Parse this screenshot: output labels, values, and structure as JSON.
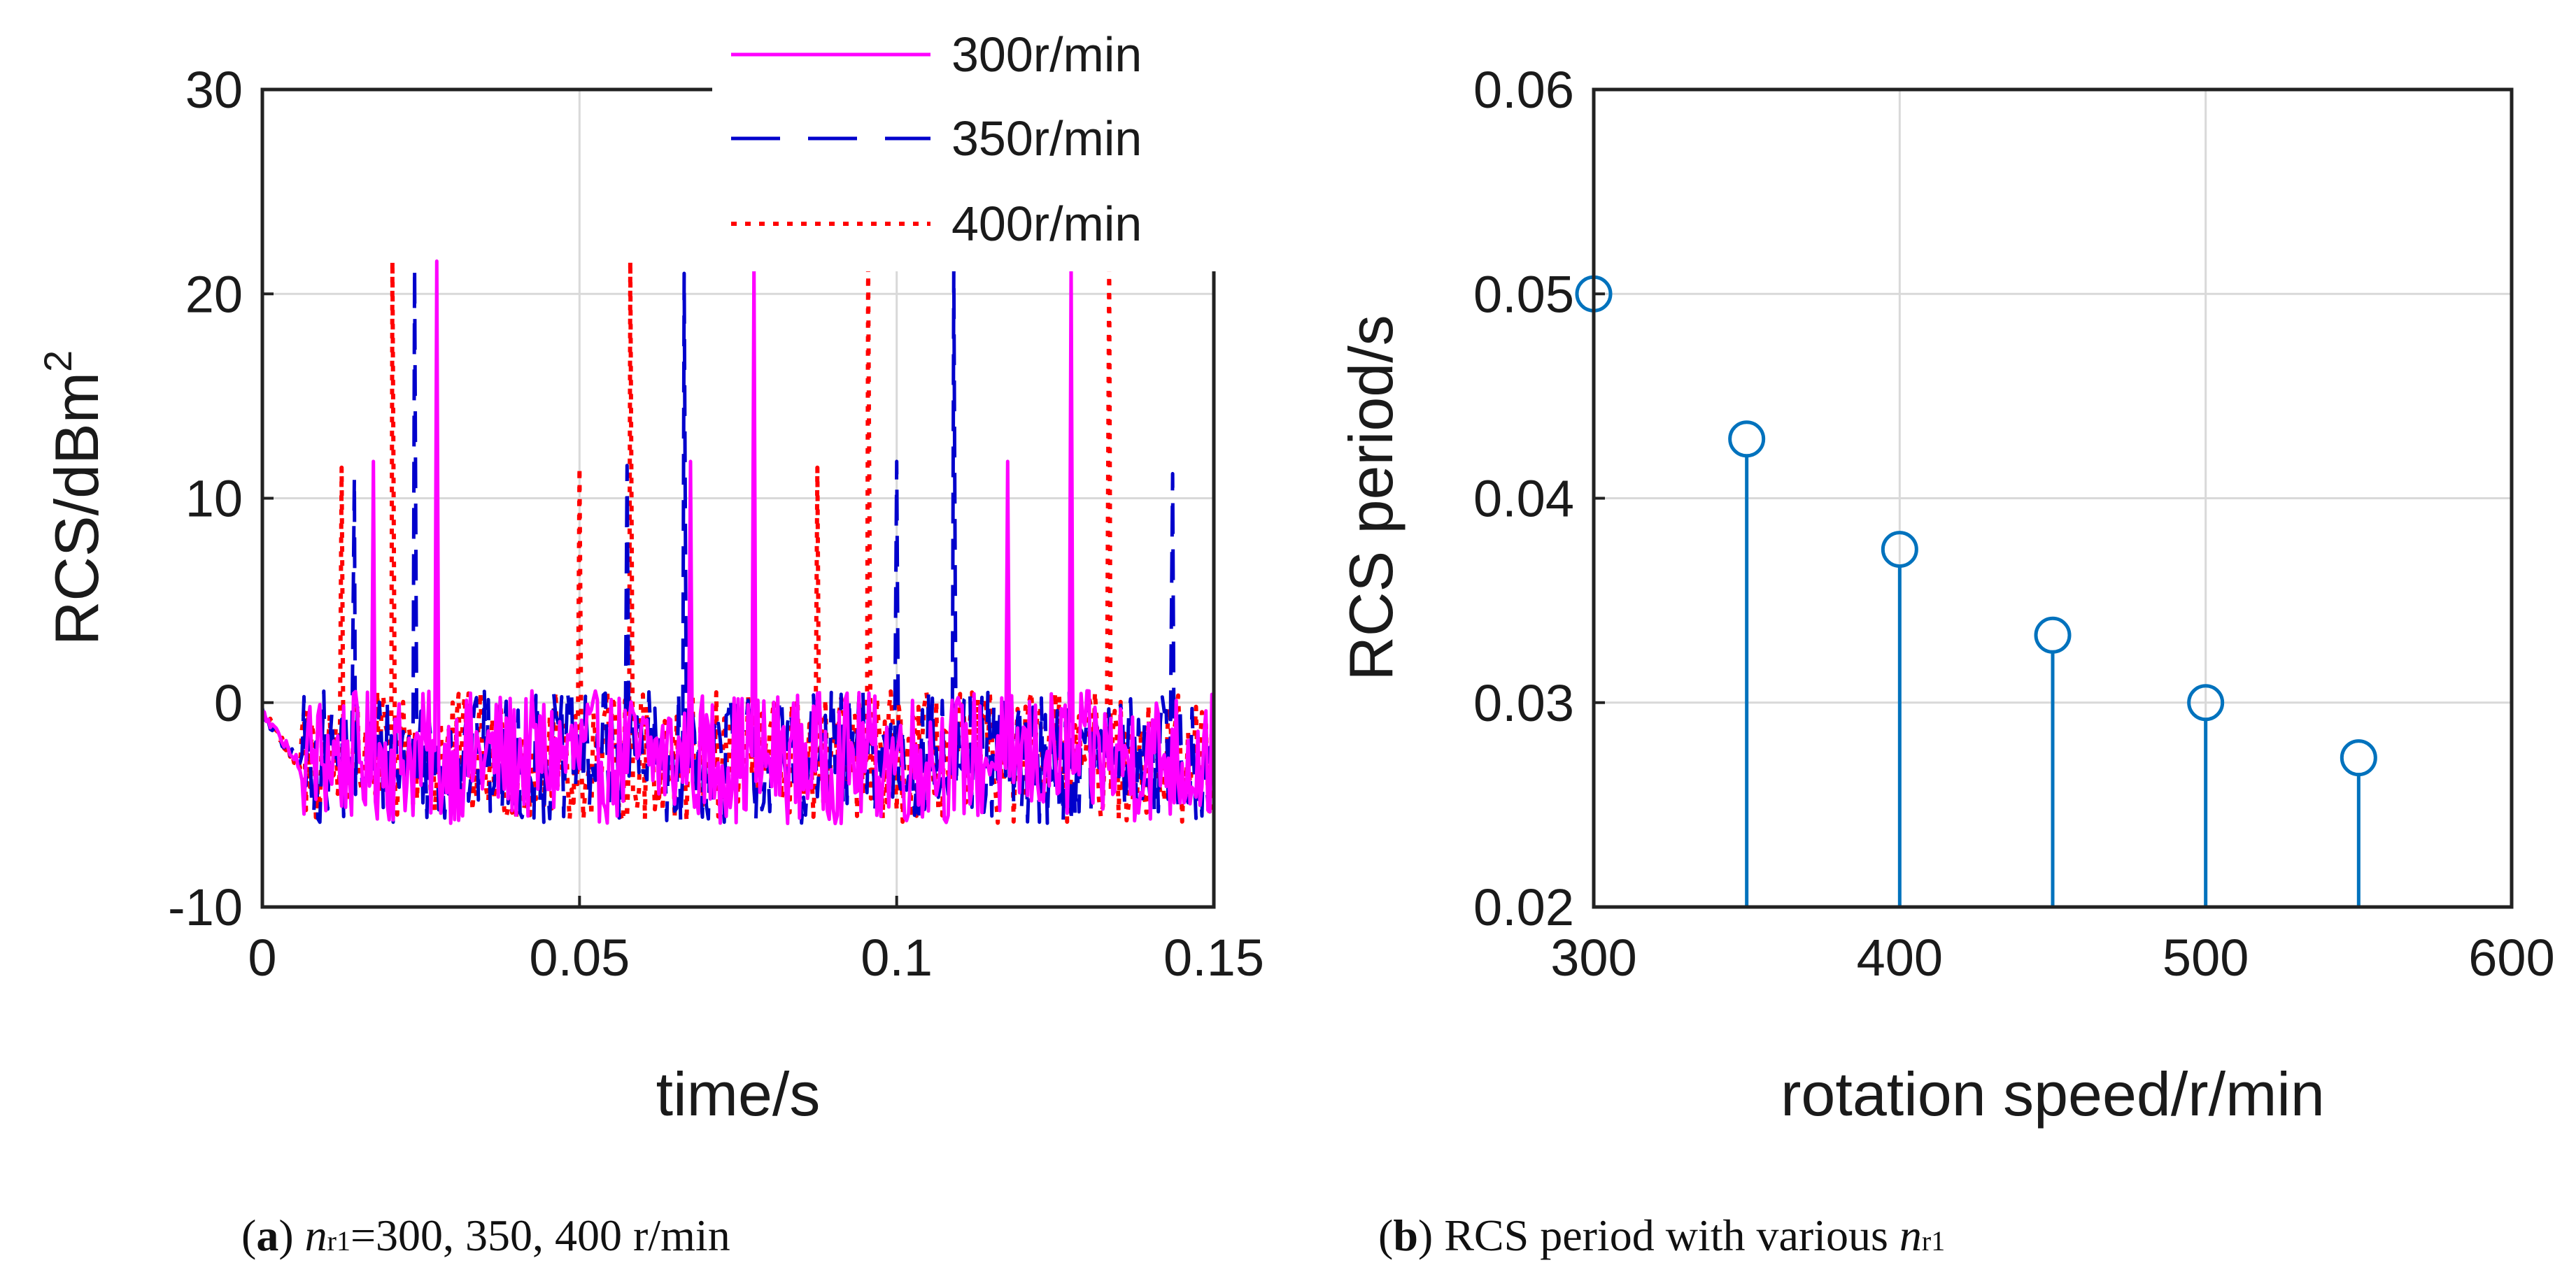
{
  "chart_data": [
    {
      "id": "a",
      "type": "line",
      "title": "",
      "xlabel": "time/s",
      "ylabel_main": "RCS/dBm",
      "ylabel_sup": "2",
      "xlim": [
        0,
        0.15
      ],
      "ylim": [
        -10,
        30
      ],
      "xticks": [
        0,
        0.05,
        0.1,
        0.15
      ],
      "xtick_labels": [
        "0",
        "0.05",
        "0.1",
        "0.15"
      ],
      "yticks": [
        -10,
        0,
        10,
        20,
        30
      ],
      "ytick_labels": [
        "-10",
        "0",
        "10",
        "20",
        "30"
      ],
      "grid": true,
      "legend_position": "top-right",
      "series": [
        {
          "name": "300r/min",
          "color": "#ff00ff",
          "style": "solid",
          "period": 0.05,
          "peaks": [
            {
              "x": 0.0175,
              "y": 11.8
            },
            {
              "x": 0.0275,
              "y": 21.6
            },
            {
              "x": 0.0675,
              "y": 11.8
            },
            {
              "x": 0.0775,
              "y": 21.6
            },
            {
              "x": 0.1175,
              "y": 11.8
            },
            {
              "x": 0.1275,
              "y": 21.6
            }
          ]
        },
        {
          "name": "350r/min",
          "color": "#0000cc",
          "style": "dashed",
          "period": 0.0429,
          "peaks": [
            {
              "x": 0.0145,
              "y": 11.0
            },
            {
              "x": 0.024,
              "y": 21.3
            },
            {
              "x": 0.0575,
              "y": 11.6
            },
            {
              "x": 0.0665,
              "y": 21.0
            },
            {
              "x": 0.1,
              "y": 11.8
            },
            {
              "x": 0.109,
              "y": 21.3
            },
            {
              "x": 0.1435,
              "y": 11.2
            }
          ]
        },
        {
          "name": "400r/min",
          "color": "#ff0000",
          "style": "dotted",
          "period": 0.0375,
          "peaks": [
            {
              "x": 0.0125,
              "y": 11.5
            },
            {
              "x": 0.0205,
              "y": 21.6
            },
            {
              "x": 0.05,
              "y": 11.5
            },
            {
              "x": 0.058,
              "y": 21.6
            },
            {
              "x": 0.0875,
              "y": 11.5
            },
            {
              "x": 0.0955,
              "y": 21.6
            },
            {
              "x": 0.1335,
              "y": 21.6
            }
          ]
        }
      ]
    },
    {
      "id": "b",
      "type": "stem",
      "title": "",
      "xlabel": "rotation speed/r/min",
      "ylabel": "RCS period/s",
      "xlim": [
        300,
        600
      ],
      "ylim": [
        0.02,
        0.06
      ],
      "xticks": [
        300,
        400,
        500,
        600
      ],
      "xtick_labels": [
        "300",
        "400",
        "500",
        "600"
      ],
      "yticks": [
        0.02,
        0.03,
        0.04,
        0.05,
        0.06
      ],
      "ytick_labels": [
        "0.02",
        "0.03",
        "0.04",
        "0.05",
        "0.06"
      ],
      "grid": true,
      "color": "#0072bd",
      "x": [
        300,
        350,
        400,
        450,
        500,
        550
      ],
      "y": [
        0.05,
        0.0429,
        0.0375,
        0.0333,
        0.03,
        0.0273
      ]
    }
  ],
  "captions": {
    "a": {
      "label": "a",
      "var": "n",
      "sub": "r1",
      "text": "=300, 350, 400 r/min"
    },
    "b": {
      "label": "b",
      "text": " RCS period with various ",
      "var": "n",
      "sub": "r1"
    }
  }
}
